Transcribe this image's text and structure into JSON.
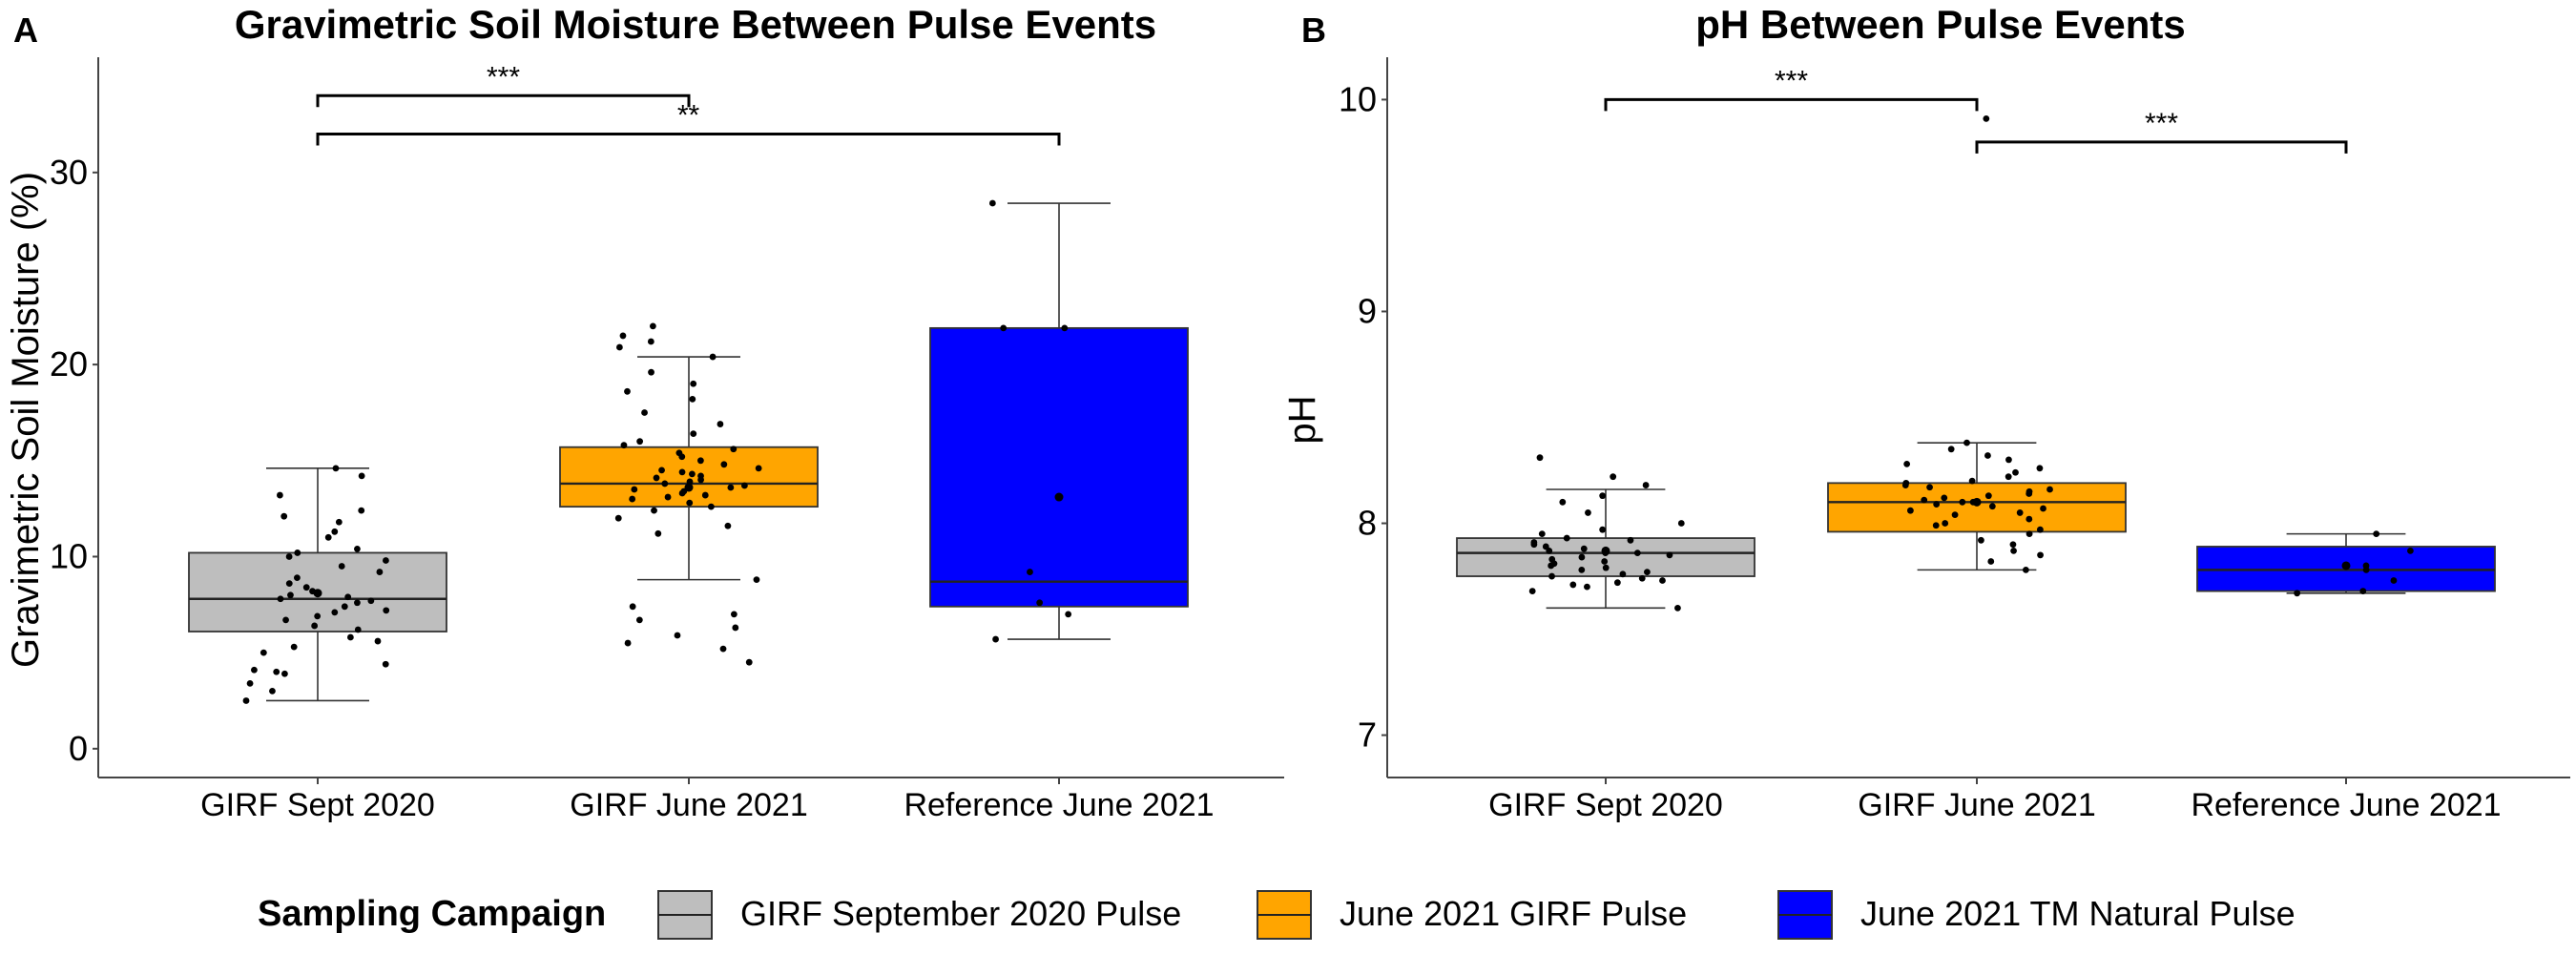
{
  "chart_data": [
    {
      "type": "box",
      "panel_label": "A",
      "title": "Gravimetric Soil Moisture Between Pulse Events",
      "xlabel": "",
      "ylabel": "Gravimetric Soil Moisture (%)",
      "ylim": [
        -1.5,
        36
      ],
      "yticks": [
        0,
        10,
        20,
        30
      ],
      "grid": false,
      "categories": [
        "GIRF Sept 2020",
        "GIRF June 2021",
        "Reference June 2021"
      ],
      "boxes": [
        {
          "category": "GIRF Sept 2020",
          "color": "#BEBEBE",
          "whisker_low": 2.5,
          "q1": 6.1,
          "median": 7.8,
          "q3": 10.2,
          "whisker_high": 14.6,
          "mean": 8.1,
          "points": [
            2.5,
            3.0,
            3.4,
            3.9,
            4.0,
            4.1,
            4.4,
            5.0,
            5.3,
            5.6,
            5.8,
            6.2,
            6.4,
            6.7,
            6.9,
            7.1,
            7.2,
            7.4,
            7.6,
            7.7,
            7.8,
            7.9,
            8.0,
            8.2,
            8.4,
            8.6,
            8.9,
            9.2,
            9.5,
            9.8,
            10.0,
            10.2,
            10.4,
            11.0,
            11.3,
            11.8,
            12.1,
            12.4,
            13.2,
            14.2,
            14.6
          ]
        },
        {
          "category": "GIRF June 2021",
          "color": "#FFA500",
          "whisker_low": 8.8,
          "q1": 12.6,
          "median": 13.8,
          "q3": 15.7,
          "whisker_high": 20.4,
          "mean": 13.6,
          "points": [
            4.5,
            5.2,
            5.5,
            5.9,
            6.3,
            6.7,
            7.0,
            7.4,
            8.8,
            11.2,
            11.6,
            12.0,
            12.4,
            12.6,
            12.8,
            13.0,
            13.1,
            13.2,
            13.3,
            13.4,
            13.5,
            13.6,
            13.7,
            13.8,
            13.9,
            14.0,
            14.1,
            14.2,
            14.3,
            14.4,
            14.5,
            14.6,
            14.8,
            15.0,
            15.2,
            15.4,
            15.6,
            15.8,
            16.0,
            16.4,
            16.9,
            17.5,
            18.2,
            18.6,
            19.0,
            19.6,
            20.4,
            20.9,
            21.2,
            21.5,
            22.0
          ]
        },
        {
          "category": "Reference June 2021",
          "color": "#0000FF",
          "whisker_low": 5.7,
          "q1": 7.4,
          "median": 8.7,
          "q3": 21.9,
          "whisker_high": 28.4,
          "mean": 13.1,
          "points": [
            5.7,
            7.0,
            7.6,
            9.2,
            21.9,
            21.9,
            28.4
          ]
        }
      ],
      "significance": [
        {
          "from": "GIRF Sept 2020",
          "to": "GIRF June 2021",
          "label": "***",
          "y": 34.0
        },
        {
          "from": "GIRF Sept 2020",
          "to": "Reference June 2021",
          "label": "**",
          "y": 32.0
        }
      ]
    },
    {
      "type": "box",
      "panel_label": "B",
      "title": "pH Between Pulse Events",
      "xlabel": "",
      "ylabel": "pH",
      "ylim": [
        6.8,
        10.2
      ],
      "yticks": [
        7,
        8,
        9,
        10
      ],
      "grid": false,
      "categories": [
        "GIRF Sept 2020",
        "GIRF June 2021",
        "Reference June 2021"
      ],
      "boxes": [
        {
          "category": "GIRF Sept 2020",
          "color": "#BEBEBE",
          "whisker_low": 7.6,
          "q1": 7.75,
          "median": 7.86,
          "q3": 7.93,
          "whisker_high": 8.16,
          "mean": 7.87,
          "points": [
            7.6,
            7.68,
            7.7,
            7.71,
            7.72,
            7.73,
            7.74,
            7.75,
            7.76,
            7.77,
            7.78,
            7.79,
            7.8,
            7.81,
            7.82,
            7.83,
            7.84,
            7.85,
            7.86,
            7.86,
            7.87,
            7.88,
            7.89,
            7.9,
            7.91,
            7.92,
            7.93,
            7.95,
            7.97,
            8.0,
            8.05,
            8.1,
            8.13,
            8.18,
            8.22,
            8.31
          ]
        },
        {
          "category": "GIRF June 2021",
          "color": "#FFA500",
          "whisker_low": 7.78,
          "q1": 7.96,
          "median": 8.1,
          "q3": 8.19,
          "whisker_high": 8.38,
          "mean": 8.1,
          "points": [
            7.78,
            7.82,
            7.85,
            7.87,
            7.9,
            7.92,
            7.95,
            7.97,
            7.99,
            8.0,
            8.02,
            8.04,
            8.05,
            8.06,
            8.07,
            8.08,
            8.09,
            8.1,
            8.1,
            8.11,
            8.12,
            8.13,
            8.14,
            8.15,
            8.16,
            8.17,
            8.18,
            8.19,
            8.2,
            8.22,
            8.24,
            8.26,
            8.28,
            8.3,
            8.32,
            8.35,
            8.38,
            9.91
          ]
        },
        {
          "category": "Reference June 2021",
          "color": "#0000FF",
          "whisker_low": 7.67,
          "q1": 7.68,
          "median": 7.78,
          "q3": 7.89,
          "whisker_high": 7.95,
          "mean": 7.8,
          "points": [
            7.67,
            7.68,
            7.73,
            7.78,
            7.8,
            7.87,
            7.95
          ]
        }
      ],
      "significance": [
        {
          "from": "GIRF Sept 2020",
          "to": "GIRF June 2021",
          "label": "***",
          "y": 10.0
        },
        {
          "from": "GIRF June 2021",
          "to": "Reference June 2021",
          "label": "***",
          "y": 9.8
        }
      ]
    }
  ],
  "legend": {
    "title": "Sampling Campaign",
    "placement": "bottom",
    "items": [
      {
        "label": "GIRF September 2020 Pulse",
        "color": "#BEBEBE"
      },
      {
        "label": "June 2021 GIRF Pulse",
        "color": "#FFA500"
      },
      {
        "label": "June 2021 TM Natural Pulse",
        "color": "#0000FF"
      }
    ]
  }
}
